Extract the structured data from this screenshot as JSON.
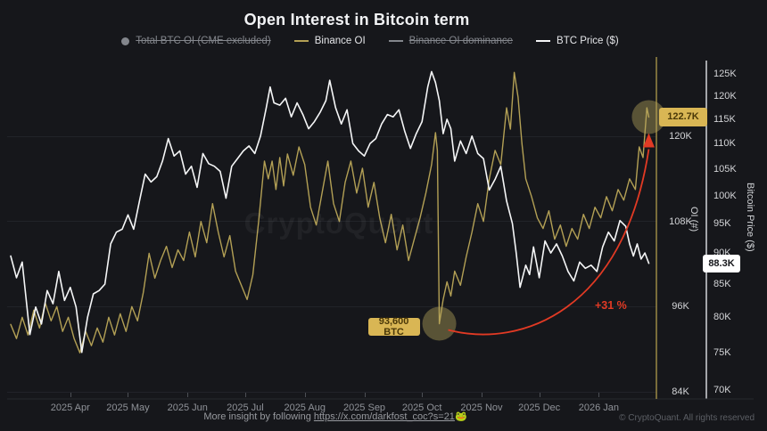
{
  "title": "Open Interest in Bitcoin term",
  "watermark": "CryptoQuant",
  "legend": [
    {
      "label": "Total BTC OI (CME excluded)",
      "marker": "dot",
      "color": "#83868c",
      "struck": true
    },
    {
      "label": "Binance OI",
      "marker": "line",
      "color": "#b3a055",
      "struck": false
    },
    {
      "label": "Binance OI dominance",
      "marker": "line",
      "color": "#83868c",
      "struck": true
    },
    {
      "label": "BTC Price ($)",
      "marker": "line",
      "color": "#f5f6f7",
      "struck": false
    }
  ],
  "footer": {
    "prefix": "More insight by following ",
    "link": "https://x.com/darkfost_coc?s=21",
    "emoji": "🐸",
    "copyright": "© CryptoQuant. All rights reserved"
  },
  "chart_data": {
    "type": "line",
    "title": "Open Interest in Bitcoin term",
    "x_axis": {
      "start": "2025-03-01",
      "end": "2026-01-27",
      "months": [
        [
          "2025-04-01",
          "2025 Apr"
        ],
        [
          "2025-05-01",
          "2025 May"
        ],
        [
          "2025-06-01",
          "2025 Jun"
        ],
        [
          "2025-07-01",
          "2025 Jul"
        ],
        [
          "2025-08-01",
          "2025 Aug"
        ],
        [
          "2025-09-01",
          "2025 Sep"
        ],
        [
          "2025-10-01",
          "2025 Oct"
        ],
        [
          "2025-11-01",
          "2025 Nov"
        ],
        [
          "2025-12-01",
          "2025 Dec"
        ],
        [
          "2026-01-01",
          "2026 Jan"
        ]
      ]
    },
    "y_axis_oi": {
      "title": "OI (#)",
      "scale": "linear",
      "unit": "K",
      "ticks": [
        120,
        108,
        96,
        84
      ]
    },
    "y_axis_price": {
      "title": "Bitcoin Price ($)",
      "scale": "log",
      "unit": "K",
      "ticks": [
        125,
        120,
        115,
        110,
        105,
        100,
        95,
        90,
        85,
        80,
        75,
        70
      ],
      "range": [
        70,
        125
      ]
    },
    "series": [
      {
        "name": "Binance OI",
        "axis": "oi",
        "color": "#b3a055",
        "width": 1.4,
        "points": [
          [
            "2025-03-01",
            93.5
          ],
          [
            "2025-03-04",
            91.5
          ],
          [
            "2025-03-07",
            94.5
          ],
          [
            "2025-03-10",
            92
          ],
          [
            "2025-03-13",
            95.5
          ],
          [
            "2025-03-16",
            93
          ],
          [
            "2025-03-19",
            96.5
          ],
          [
            "2025-03-22",
            94
          ],
          [
            "2025-03-25",
            96
          ],
          [
            "2025-03-28",
            92.5
          ],
          [
            "2025-03-31",
            94.5
          ],
          [
            "2025-04-03",
            91.5
          ],
          [
            "2025-04-06",
            89.5
          ],
          [
            "2025-04-09",
            92.5
          ],
          [
            "2025-04-12",
            90.5
          ],
          [
            "2025-04-15",
            93
          ],
          [
            "2025-04-18",
            91
          ],
          [
            "2025-04-21",
            94.5
          ],
          [
            "2025-04-24",
            92
          ],
          [
            "2025-04-27",
            95
          ],
          [
            "2025-04-30",
            92.5
          ],
          [
            "2025-05-03",
            96
          ],
          [
            "2025-05-06",
            94
          ],
          [
            "2025-05-09",
            98
          ],
          [
            "2025-05-12",
            103.5
          ],
          [
            "2025-05-15",
            100
          ],
          [
            "2025-05-18",
            102.5
          ],
          [
            "2025-05-21",
            104.5
          ],
          [
            "2025-05-24",
            101.5
          ],
          [
            "2025-05-27",
            104
          ],
          [
            "2025-05-30",
            102.5
          ],
          [
            "2025-06-02",
            106.5
          ],
          [
            "2025-06-05",
            103
          ],
          [
            "2025-06-08",
            108
          ],
          [
            "2025-06-11",
            105
          ],
          [
            "2025-06-14",
            110.5
          ],
          [
            "2025-06-17",
            106.5
          ],
          [
            "2025-06-20",
            103
          ],
          [
            "2025-06-23",
            106
          ],
          [
            "2025-06-26",
            101
          ],
          [
            "2025-06-29",
            99
          ],
          [
            "2025-07-02",
            97
          ],
          [
            "2025-07-05",
            100.5
          ],
          [
            "2025-07-08",
            108
          ],
          [
            "2025-07-11",
            116.5
          ],
          [
            "2025-07-13",
            114
          ],
          [
            "2025-07-15",
            116.5
          ],
          [
            "2025-07-17",
            112.5
          ],
          [
            "2025-07-19",
            117
          ],
          [
            "2025-07-21",
            113
          ],
          [
            "2025-07-23",
            117.5
          ],
          [
            "2025-07-26",
            114.5
          ],
          [
            "2025-07-29",
            118.5
          ],
          [
            "2025-08-01",
            116
          ],
          [
            "2025-08-04",
            110
          ],
          [
            "2025-08-07",
            107.5
          ],
          [
            "2025-08-10",
            112
          ],
          [
            "2025-08-13",
            116.5
          ],
          [
            "2025-08-16",
            110.5
          ],
          [
            "2025-08-19",
            108
          ],
          [
            "2025-08-22",
            113.5
          ],
          [
            "2025-08-25",
            116.5
          ],
          [
            "2025-08-28",
            112
          ],
          [
            "2025-08-31",
            115.5
          ],
          [
            "2025-09-03",
            110
          ],
          [
            "2025-09-06",
            113.5
          ],
          [
            "2025-09-09",
            108.5
          ],
          [
            "2025-09-12",
            105
          ],
          [
            "2025-09-15",
            109
          ],
          [
            "2025-09-18",
            104
          ],
          [
            "2025-09-21",
            107.5
          ],
          [
            "2025-09-24",
            102.5
          ],
          [
            "2025-09-27",
            105.5
          ],
          [
            "2025-09-30",
            108.5
          ],
          [
            "2025-10-03",
            112
          ],
          [
            "2025-10-06",
            116
          ],
          [
            "2025-10-08",
            120.5
          ],
          [
            "2025-10-09",
            118
          ],
          [
            "2025-10-10",
            93.6
          ],
          [
            "2025-10-12",
            97
          ],
          [
            "2025-10-14",
            99.5
          ],
          [
            "2025-10-16",
            97.5
          ],
          [
            "2025-10-18",
            101
          ],
          [
            "2025-10-21",
            99
          ],
          [
            "2025-10-24",
            103
          ],
          [
            "2025-10-27",
            106.5
          ],
          [
            "2025-10-30",
            110.5
          ],
          [
            "2025-11-02",
            108
          ],
          [
            "2025-11-05",
            114
          ],
          [
            "2025-11-08",
            118
          ],
          [
            "2025-11-11",
            116
          ],
          [
            "2025-11-14",
            124
          ],
          [
            "2025-11-16",
            121
          ],
          [
            "2025-11-18",
            129
          ],
          [
            "2025-11-20",
            125.5
          ],
          [
            "2025-11-22",
            119
          ],
          [
            "2025-11-24",
            114
          ],
          [
            "2025-11-27",
            111.5
          ],
          [
            "2025-11-30",
            108.5
          ],
          [
            "2025-12-03",
            107
          ],
          [
            "2025-12-06",
            109.5
          ],
          [
            "2025-12-09",
            105.5
          ],
          [
            "2025-12-12",
            107.5
          ],
          [
            "2025-12-15",
            104.5
          ],
          [
            "2025-12-18",
            107
          ],
          [
            "2025-12-21",
            105.5
          ],
          [
            "2025-12-24",
            109
          ],
          [
            "2025-12-27",
            107
          ],
          [
            "2025-12-30",
            110
          ],
          [
            "2026-01-02",
            108.5
          ],
          [
            "2026-01-05",
            111.5
          ],
          [
            "2026-01-08",
            109.5
          ],
          [
            "2026-01-11",
            112.5
          ],
          [
            "2026-01-14",
            111
          ],
          [
            "2026-01-17",
            114
          ],
          [
            "2026-01-20",
            112.5
          ],
          [
            "2026-01-22",
            118.5
          ],
          [
            "2026-01-24",
            117
          ],
          [
            "2026-01-26",
            124
          ],
          [
            "2026-01-27",
            122.7
          ]
        ]
      },
      {
        "name": "BTC Price ($)",
        "axis": "price",
        "color": "#f5f6f7",
        "width": 1.6,
        "points": [
          [
            "2025-03-01",
            89.5
          ],
          [
            "2025-03-04",
            86
          ],
          [
            "2025-03-07",
            88.5
          ],
          [
            "2025-03-11",
            77.5
          ],
          [
            "2025-03-14",
            81.5
          ],
          [
            "2025-03-17",
            79
          ],
          [
            "2025-03-20",
            84
          ],
          [
            "2025-03-23",
            82
          ],
          [
            "2025-03-26",
            87
          ],
          [
            "2025-03-29",
            82.5
          ],
          [
            "2025-04-01",
            84.5
          ],
          [
            "2025-04-04",
            81.5
          ],
          [
            "2025-04-07",
            75
          ],
          [
            "2025-04-10",
            80
          ],
          [
            "2025-04-13",
            83.5
          ],
          [
            "2025-04-16",
            84
          ],
          [
            "2025-04-19",
            85
          ],
          [
            "2025-04-22",
            91.5
          ],
          [
            "2025-04-25",
            93.5
          ],
          [
            "2025-04-28",
            94
          ],
          [
            "2025-05-01",
            96.5
          ],
          [
            "2025-05-04",
            94
          ],
          [
            "2025-05-07",
            99
          ],
          [
            "2025-05-10",
            104
          ],
          [
            "2025-05-13",
            102.5
          ],
          [
            "2025-05-16",
            103.5
          ],
          [
            "2025-05-19",
            106.5
          ],
          [
            "2025-05-22",
            111
          ],
          [
            "2025-05-25",
            107.5
          ],
          [
            "2025-05-28",
            108.5
          ],
          [
            "2025-05-31",
            104
          ],
          [
            "2025-06-03",
            105.5
          ],
          [
            "2025-06-06",
            101.5
          ],
          [
            "2025-06-09",
            108
          ],
          [
            "2025-06-12",
            106
          ],
          [
            "2025-06-15",
            105.5
          ],
          [
            "2025-06-18",
            104.5
          ],
          [
            "2025-06-21",
            99.5
          ],
          [
            "2025-06-24",
            105.5
          ],
          [
            "2025-06-27",
            107
          ],
          [
            "2025-06-30",
            108.5
          ],
          [
            "2025-07-03",
            109.5
          ],
          [
            "2025-07-06",
            108
          ],
          [
            "2025-07-09",
            111.5
          ],
          [
            "2025-07-12",
            117.5
          ],
          [
            "2025-07-14",
            122
          ],
          [
            "2025-07-16",
            118.5
          ],
          [
            "2025-07-19",
            118
          ],
          [
            "2025-07-22",
            119.5
          ],
          [
            "2025-07-25",
            115.5
          ],
          [
            "2025-07-28",
            118.5
          ],
          [
            "2025-07-31",
            116
          ],
          [
            "2025-08-03",
            113
          ],
          [
            "2025-08-06",
            114.5
          ],
          [
            "2025-08-09",
            116.5
          ],
          [
            "2025-08-12",
            119
          ],
          [
            "2025-08-14",
            123.5
          ],
          [
            "2025-08-17",
            117.5
          ],
          [
            "2025-08-20",
            114
          ],
          [
            "2025-08-23",
            117
          ],
          [
            "2025-08-26",
            110
          ],
          [
            "2025-08-29",
            108.5
          ],
          [
            "2025-09-01",
            107.5
          ],
          [
            "2025-09-04",
            110
          ],
          [
            "2025-09-07",
            111
          ],
          [
            "2025-09-10",
            114
          ],
          [
            "2025-09-13",
            116
          ],
          [
            "2025-09-16",
            115.5
          ],
          [
            "2025-09-19",
            117
          ],
          [
            "2025-09-22",
            112.5
          ],
          [
            "2025-09-25",
            109
          ],
          [
            "2025-09-28",
            112
          ],
          [
            "2025-10-01",
            114.5
          ],
          [
            "2025-10-04",
            122
          ],
          [
            "2025-10-06",
            125.5
          ],
          [
            "2025-10-08",
            123
          ],
          [
            "2025-10-10",
            119
          ],
          [
            "2025-10-12",
            112
          ],
          [
            "2025-10-14",
            115
          ],
          [
            "2025-10-16",
            113
          ],
          [
            "2025-10-18",
            106.5
          ],
          [
            "2025-10-21",
            110.5
          ],
          [
            "2025-10-24",
            108
          ],
          [
            "2025-10-27",
            111.5
          ],
          [
            "2025-10-30",
            108
          ],
          [
            "2025-11-02",
            107
          ],
          [
            "2025-11-05",
            101
          ],
          [
            "2025-11-08",
            103
          ],
          [
            "2025-11-11",
            105.5
          ],
          [
            "2025-11-14",
            99
          ],
          [
            "2025-11-17",
            95
          ],
          [
            "2025-11-19",
            90
          ],
          [
            "2025-11-21",
            84.5
          ],
          [
            "2025-11-24",
            88
          ],
          [
            "2025-11-26",
            86.5
          ],
          [
            "2025-11-28",
            91
          ],
          [
            "2025-12-01",
            86
          ],
          [
            "2025-12-04",
            92
          ],
          [
            "2025-12-07",
            90
          ],
          [
            "2025-12-10",
            91.5
          ],
          [
            "2025-12-13",
            89.5
          ],
          [
            "2025-12-16",
            87
          ],
          [
            "2025-12-19",
            85.5
          ],
          [
            "2025-12-22",
            88.5
          ],
          [
            "2025-12-25",
            87.5
          ],
          [
            "2025-12-28",
            88
          ],
          [
            "2025-12-31",
            87
          ],
          [
            "2026-01-03",
            91
          ],
          [
            "2026-01-06",
            93.5
          ],
          [
            "2026-01-09",
            92
          ],
          [
            "2026-01-12",
            95.5
          ],
          [
            "2026-01-15",
            94.5
          ],
          [
            "2026-01-17",
            91.5
          ],
          [
            "2026-01-19",
            89.5
          ],
          [
            "2026-01-21",
            91.5
          ],
          [
            "2026-01-23",
            89
          ],
          [
            "2026-01-25",
            90
          ],
          [
            "2026-01-27",
            88.3
          ]
        ]
      }
    ],
    "annotations": {
      "oi_last_badge": "122.7K",
      "price_last_badge": "88.3K",
      "crash_badge": "93,600 BTC",
      "crash_point": [
        "2025-10-10",
        93.6
      ],
      "last_oi_point": [
        "2026-01-27",
        122.7
      ],
      "pct_label": "+31 %",
      "highlight_color": "#b8a65e",
      "arrow_color": "#e23a24",
      "badge_gold": "#d9b654",
      "marker_line_color": "#9a8845"
    }
  }
}
